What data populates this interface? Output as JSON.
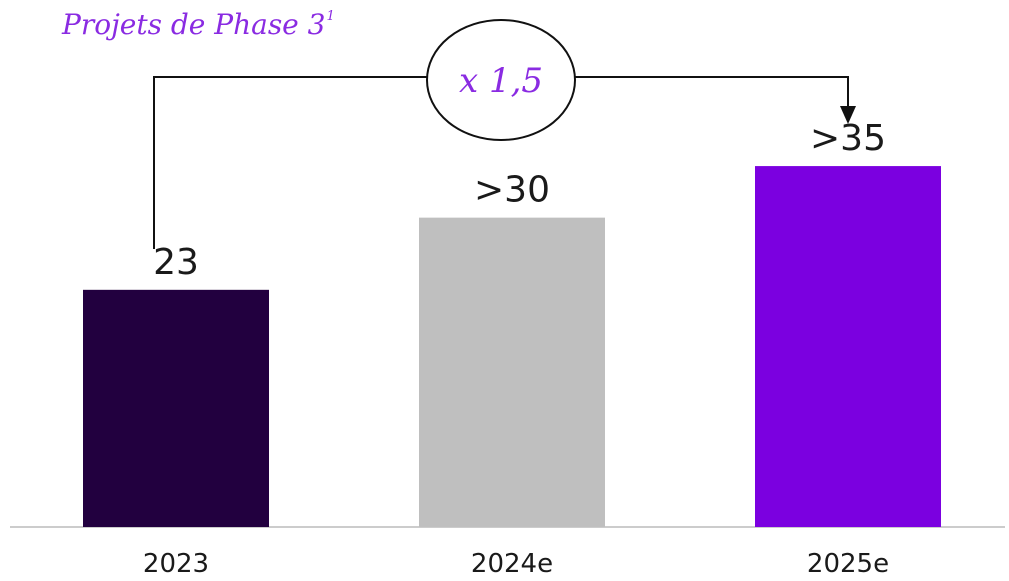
{
  "title": {
    "text": "Projets de Phase 3",
    "footnote": "1"
  },
  "multiplier": {
    "label": "x 1,5"
  },
  "colors": {
    "bar_2023": "#22003f",
    "bar_2024e": "#bfbfbf",
    "bar_2025e": "#7b00e0",
    "accent": "#8a2be2",
    "axis": "#cccccc"
  },
  "chart_data": {
    "type": "bar",
    "title": "Projets de Phase 3",
    "categories": [
      "2023",
      "2024e",
      "2025e"
    ],
    "values": [
      23,
      30,
      35
    ],
    "value_labels": [
      "23",
      ">30",
      ">35"
    ],
    "ylim": [
      0,
      40
    ],
    "grid": false,
    "annotations": [
      "x 1,5"
    ]
  }
}
